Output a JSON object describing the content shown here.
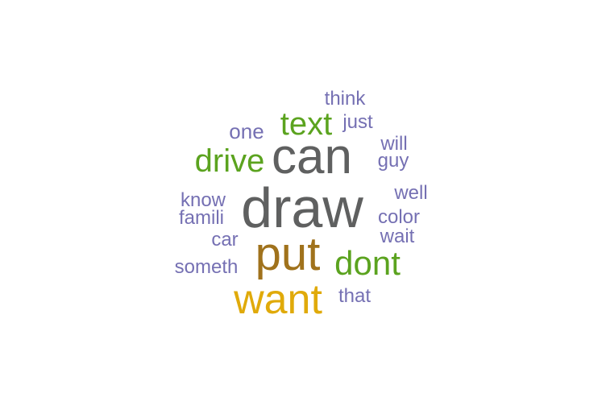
{
  "words": [
    {
      "id": "draw",
      "text": "draw",
      "color": "#5f6060"
    },
    {
      "id": "can",
      "text": "can",
      "color": "#5f6060"
    },
    {
      "id": "put",
      "text": "put",
      "color": "#a0721c"
    },
    {
      "id": "want",
      "text": "want",
      "color": "#e0aa0a"
    },
    {
      "id": "dont",
      "text": "dont",
      "color": "#5ba31f"
    },
    {
      "id": "text",
      "text": "text",
      "color": "#5ba31f"
    },
    {
      "id": "drive",
      "text": "drive",
      "color": "#5ba31f"
    },
    {
      "id": "think",
      "text": "think",
      "color": "#7570b3"
    },
    {
      "id": "just",
      "text": "just",
      "color": "#7570b3"
    },
    {
      "id": "one",
      "text": "one",
      "color": "#7570b3"
    },
    {
      "id": "will",
      "text": "will",
      "color": "#7570b3"
    },
    {
      "id": "guy",
      "text": "guy",
      "color": "#7570b3"
    },
    {
      "id": "well",
      "text": "well",
      "color": "#7570b3"
    },
    {
      "id": "know",
      "text": "know",
      "color": "#7570b3"
    },
    {
      "id": "famili",
      "text": "famili",
      "color": "#7570b3"
    },
    {
      "id": "color",
      "text": "color",
      "color": "#7570b3"
    },
    {
      "id": "car",
      "text": "car",
      "color": "#7570b3"
    },
    {
      "id": "wait",
      "text": "wait",
      "color": "#7570b3"
    },
    {
      "id": "someth",
      "text": "someth",
      "color": "#7570b3"
    },
    {
      "id": "that",
      "text": "that",
      "color": "#7570b3"
    }
  ]
}
